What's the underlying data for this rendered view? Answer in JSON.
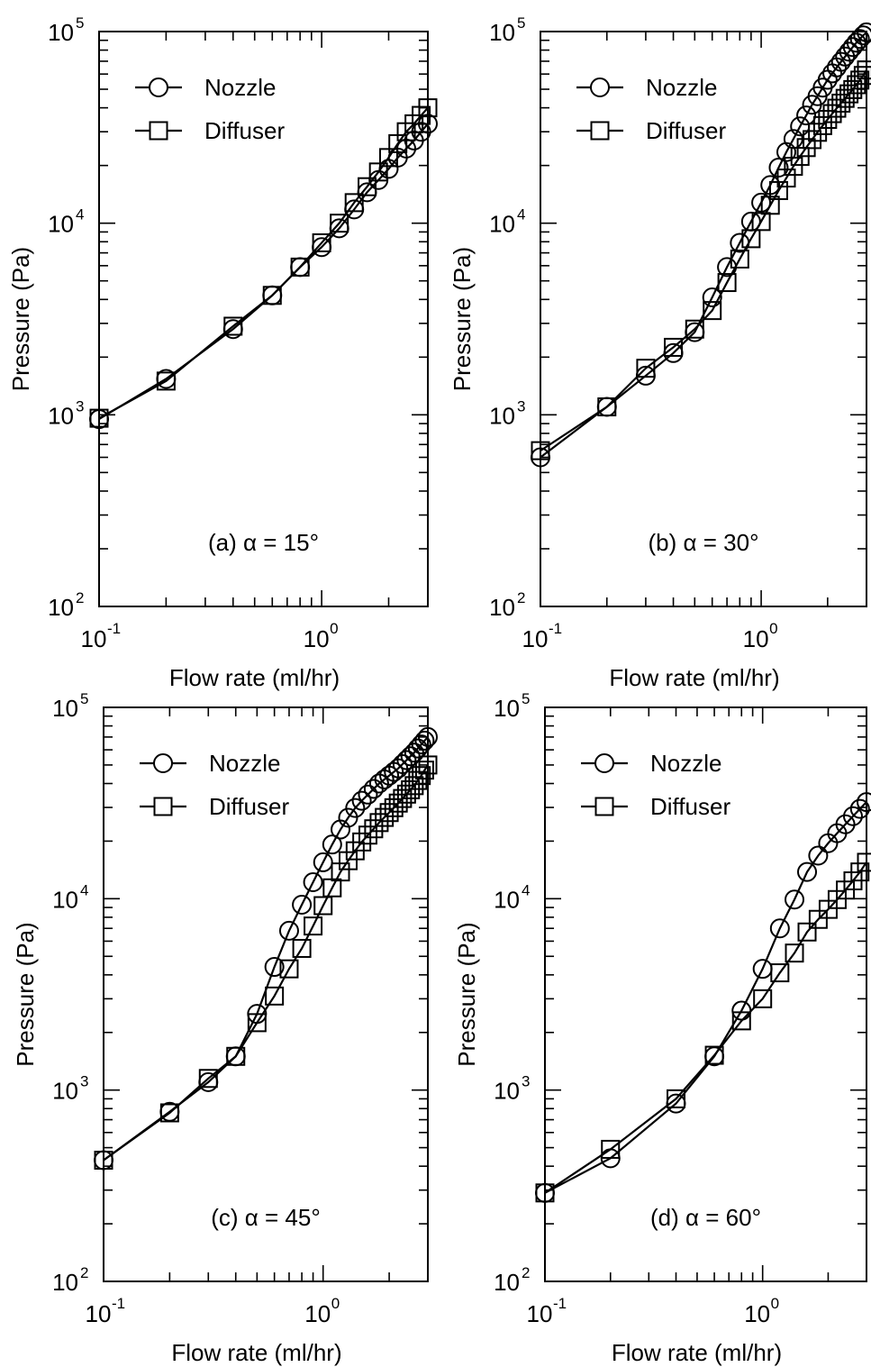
{
  "figure": {
    "xlabel": "Flow rate (ml/hr)",
    "ylabel": "Pressure (Pa)"
  },
  "chart_data": [
    {
      "type": "line",
      "panel_label": "(a) α = 15°",
      "xlabel": "Flow rate (ml/hr)",
      "ylabel": "Pressure (Pa)",
      "xscale": "log",
      "yscale": "log",
      "xlim": [
        0.1,
        3
      ],
      "ylim": [
        100,
        100000
      ],
      "xticks": [
        {
          "base": "10",
          "exp": "-1"
        },
        {
          "base": "10",
          "exp": "0"
        }
      ],
      "yticks": [
        {
          "base": "10",
          "exp": "2"
        },
        {
          "base": "10",
          "exp": "3"
        },
        {
          "base": "10",
          "exp": "4"
        },
        {
          "base": "10",
          "exp": "5"
        }
      ],
      "legend_position": "top-left",
      "series": [
        {
          "name": "Nozzle",
          "marker": "circle",
          "x": [
            0.1,
            0.2,
            0.4,
            0.6,
            0.8,
            1.0,
            1.2,
            1.4,
            1.6,
            1.8,
            2.0,
            2.2,
            2.4,
            2.6,
            2.8,
            3.0
          ],
          "y": [
            950,
            1540,
            2800,
            4200,
            5900,
            7500,
            9400,
            11800,
            14500,
            16800,
            19200,
            22000,
            24500,
            27000,
            30000,
            33000
          ]
        },
        {
          "name": "Diffuser",
          "marker": "square",
          "x": [
            0.1,
            0.2,
            0.4,
            0.6,
            0.8,
            1.0,
            1.2,
            1.4,
            1.6,
            1.8,
            2.0,
            2.2,
            2.4,
            2.6,
            2.8,
            3.0
          ],
          "y": [
            960,
            1500,
            2900,
            4200,
            5900,
            7900,
            10000,
            12800,
            15500,
            18500,
            22000,
            26000,
            30000,
            33000,
            36500,
            40000
          ]
        }
      ]
    },
    {
      "type": "line",
      "panel_label": "(b) α = 30°",
      "xlabel": "Flow rate (ml/hr)",
      "ylabel": "Pressure (Pa)",
      "xscale": "log",
      "yscale": "log",
      "xlim": [
        0.1,
        3
      ],
      "ylim": [
        100,
        100000
      ],
      "xticks": [
        {
          "base": "10",
          "exp": "-1"
        },
        {
          "base": "10",
          "exp": "0"
        }
      ],
      "yticks": [
        {
          "base": "10",
          "exp": "2"
        },
        {
          "base": "10",
          "exp": "3"
        },
        {
          "base": "10",
          "exp": "4"
        },
        {
          "base": "10",
          "exp": "5"
        }
      ],
      "legend_position": "top-left",
      "series": [
        {
          "name": "Nozzle",
          "marker": "circle",
          "x": [
            0.1,
            0.2,
            0.3,
            0.4,
            0.5,
            0.6,
            0.7,
            0.8,
            0.9,
            1.0,
            1.1,
            1.2,
            1.3,
            1.4,
            1.5,
            1.6,
            1.7,
            1.8,
            1.9,
            2.0,
            2.1,
            2.2,
            2.3,
            2.4,
            2.5,
            2.6,
            2.7,
            2.8,
            2.9,
            3.0
          ],
          "y": [
            600,
            1100,
            1600,
            2100,
            2700,
            4100,
            5900,
            7900,
            10200,
            12800,
            15800,
            19500,
            23500,
            27500,
            32000,
            36500,
            41500,
            46000,
            51000,
            56000,
            60500,
            65000,
            69500,
            74000,
            78500,
            83000,
            87500,
            91500,
            95500,
            99000
          ]
        },
        {
          "name": "Diffuser",
          "marker": "square",
          "x": [
            0.1,
            0.2,
            0.3,
            0.4,
            0.5,
            0.6,
            0.7,
            0.8,
            0.9,
            1.0,
            1.1,
            1.2,
            1.3,
            1.4,
            1.5,
            1.6,
            1.7,
            1.8,
            1.9,
            2.0,
            2.1,
            2.2,
            2.3,
            2.4,
            2.5,
            2.6,
            2.7,
            2.8,
            2.9,
            3.0
          ],
          "y": [
            650,
            1100,
            1750,
            2250,
            2800,
            3500,
            4900,
            6500,
            8300,
            10200,
            12400,
            14800,
            17200,
            19800,
            22300,
            24800,
            27300,
            29800,
            32300,
            34800,
            37300,
            39800,
            42300,
            44800,
            47300,
            49800,
            52800,
            55800,
            59000,
            63000
          ]
        }
      ]
    },
    {
      "type": "line",
      "panel_label": "(c) α = 45°",
      "xlabel": "Flow rate (ml/hr)",
      "ylabel": "Pressure (Pa)",
      "xscale": "log",
      "yscale": "log",
      "xlim": [
        0.1,
        3
      ],
      "ylim": [
        100,
        100000
      ],
      "xticks": [
        {
          "base": "10",
          "exp": "-1"
        },
        {
          "base": "10",
          "exp": "0"
        }
      ],
      "yticks": [
        {
          "base": "10",
          "exp": "2"
        },
        {
          "base": "10",
          "exp": "3"
        },
        {
          "base": "10",
          "exp": "4"
        },
        {
          "base": "10",
          "exp": "5"
        }
      ],
      "legend_position": "top-left",
      "series": [
        {
          "name": "Nozzle",
          "marker": "circle",
          "x": [
            0.1,
            0.2,
            0.3,
            0.4,
            0.5,
            0.6,
            0.7,
            0.8,
            0.9,
            1.0,
            1.1,
            1.2,
            1.3,
            1.4,
            1.5,
            1.6,
            1.7,
            1.8,
            1.9,
            2.0,
            2.1,
            2.2,
            2.3,
            2.4,
            2.5,
            2.6,
            2.7,
            2.8,
            2.9,
            3.0
          ],
          "y": [
            430,
            770,
            1100,
            1500,
            2500,
            4400,
            6800,
            9300,
            12200,
            15500,
            19200,
            23000,
            26500,
            29800,
            32500,
            35000,
            37500,
            40000,
            42000,
            44000,
            46000,
            48000,
            50500,
            53000,
            55500,
            58000,
            61000,
            64000,
            67000,
            70000
          ]
        },
        {
          "name": "Diffuser",
          "marker": "square",
          "x": [
            0.1,
            0.2,
            0.3,
            0.4,
            0.5,
            0.6,
            0.7,
            0.8,
            0.9,
            1.0,
            1.1,
            1.2,
            1.3,
            1.4,
            1.5,
            1.6,
            1.7,
            1.8,
            1.9,
            2.0,
            2.1,
            2.2,
            2.3,
            2.4,
            2.5,
            2.6,
            2.7,
            2.8,
            2.9,
            3.0
          ],
          "y": [
            430,
            760,
            1150,
            1500,
            2250,
            3100,
            4300,
            5500,
            7200,
            9200,
            11400,
            13800,
            15800,
            17800,
            19800,
            21500,
            23200,
            25000,
            26600,
            28200,
            29900,
            31600,
            33400,
            35200,
            37100,
            39000,
            41500,
            44000,
            47000,
            50000
          ]
        }
      ]
    },
    {
      "type": "line",
      "panel_label": "(d) α = 60°",
      "xlabel": "Flow rate (ml/hr)",
      "ylabel": "Pressure (Pa)",
      "xscale": "log",
      "yscale": "log",
      "xlim": [
        0.1,
        3
      ],
      "ylim": [
        100,
        100000
      ],
      "xticks": [
        {
          "base": "10",
          "exp": "-1"
        },
        {
          "base": "10",
          "exp": "0"
        }
      ],
      "yticks": [
        {
          "base": "10",
          "exp": "2"
        },
        {
          "base": "10",
          "exp": "3"
        },
        {
          "base": "10",
          "exp": "4"
        },
        {
          "base": "10",
          "exp": "5"
        }
      ],
      "legend_position": "top-left",
      "series": [
        {
          "name": "Nozzle",
          "marker": "circle",
          "x": [
            0.1,
            0.2,
            0.4,
            0.6,
            0.8,
            1.0,
            1.2,
            1.4,
            1.6,
            1.8,
            2.0,
            2.2,
            2.4,
            2.6,
            2.8,
            3.0
          ],
          "y": [
            290,
            440,
            850,
            1500,
            2600,
            4300,
            7000,
            9900,
            13800,
            16800,
            19500,
            22000,
            24500,
            27000,
            29500,
            32000
          ]
        },
        {
          "name": "Diffuser",
          "marker": "square",
          "x": [
            0.1,
            0.2,
            0.4,
            0.6,
            0.8,
            1.0,
            1.2,
            1.4,
            1.6,
            1.8,
            2.0,
            2.2,
            2.4,
            2.6,
            2.8,
            3.0
          ],
          "y": [
            290,
            490,
            900,
            1520,
            2300,
            3000,
            4100,
            5200,
            6700,
            7800,
            8800,
            9900,
            11100,
            12400,
            13800,
            15500
          ]
        }
      ]
    }
  ]
}
